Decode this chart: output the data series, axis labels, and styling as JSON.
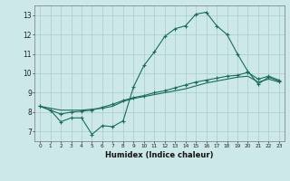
{
  "xlabel": "Humidex (Indice chaleur)",
  "xlim": [
    -0.5,
    23.5
  ],
  "ylim": [
    6.5,
    13.5
  ],
  "yticks": [
    7,
    8,
    9,
    10,
    11,
    12,
    13
  ],
  "bg_color": "#cce8e8",
  "line_color": "#1a6b5e",
  "grid_color": "#aacccc",
  "line1_x": [
    0,
    1,
    2,
    3,
    4,
    5,
    6,
    7,
    8,
    9,
    10,
    11,
    12,
    13,
    14,
    15,
    16,
    17,
    18,
    19,
    20,
    21,
    22,
    23
  ],
  "line1_y": [
    8.3,
    8.1,
    7.5,
    7.7,
    7.7,
    6.85,
    7.3,
    7.25,
    7.55,
    9.3,
    10.4,
    11.1,
    11.9,
    12.3,
    12.45,
    13.05,
    13.15,
    12.45,
    12.0,
    11.0,
    10.1,
    9.45,
    9.8,
    9.6
  ],
  "line2_x": [
    0,
    1,
    2,
    3,
    4,
    5,
    6,
    7,
    8,
    9,
    10,
    11,
    12,
    13,
    14,
    15,
    16,
    17,
    18,
    19,
    20,
    21,
    22,
    23
  ],
  "line2_y": [
    8.3,
    8.1,
    7.9,
    8.0,
    8.05,
    8.1,
    8.25,
    8.4,
    8.6,
    8.75,
    8.85,
    9.0,
    9.1,
    9.25,
    9.4,
    9.55,
    9.65,
    9.75,
    9.85,
    9.9,
    10.05,
    9.7,
    9.85,
    9.65
  ],
  "line3_x": [
    0,
    1,
    2,
    3,
    4,
    5,
    6,
    7,
    8,
    9,
    10,
    11,
    12,
    13,
    14,
    15,
    16,
    17,
    18,
    19,
    20,
    21,
    22,
    23
  ],
  "line3_y": [
    8.3,
    8.2,
    8.1,
    8.1,
    8.1,
    8.15,
    8.2,
    8.3,
    8.55,
    8.7,
    8.8,
    8.9,
    9.0,
    9.1,
    9.2,
    9.35,
    9.5,
    9.6,
    9.7,
    9.8,
    9.85,
    9.55,
    9.7,
    9.55
  ]
}
